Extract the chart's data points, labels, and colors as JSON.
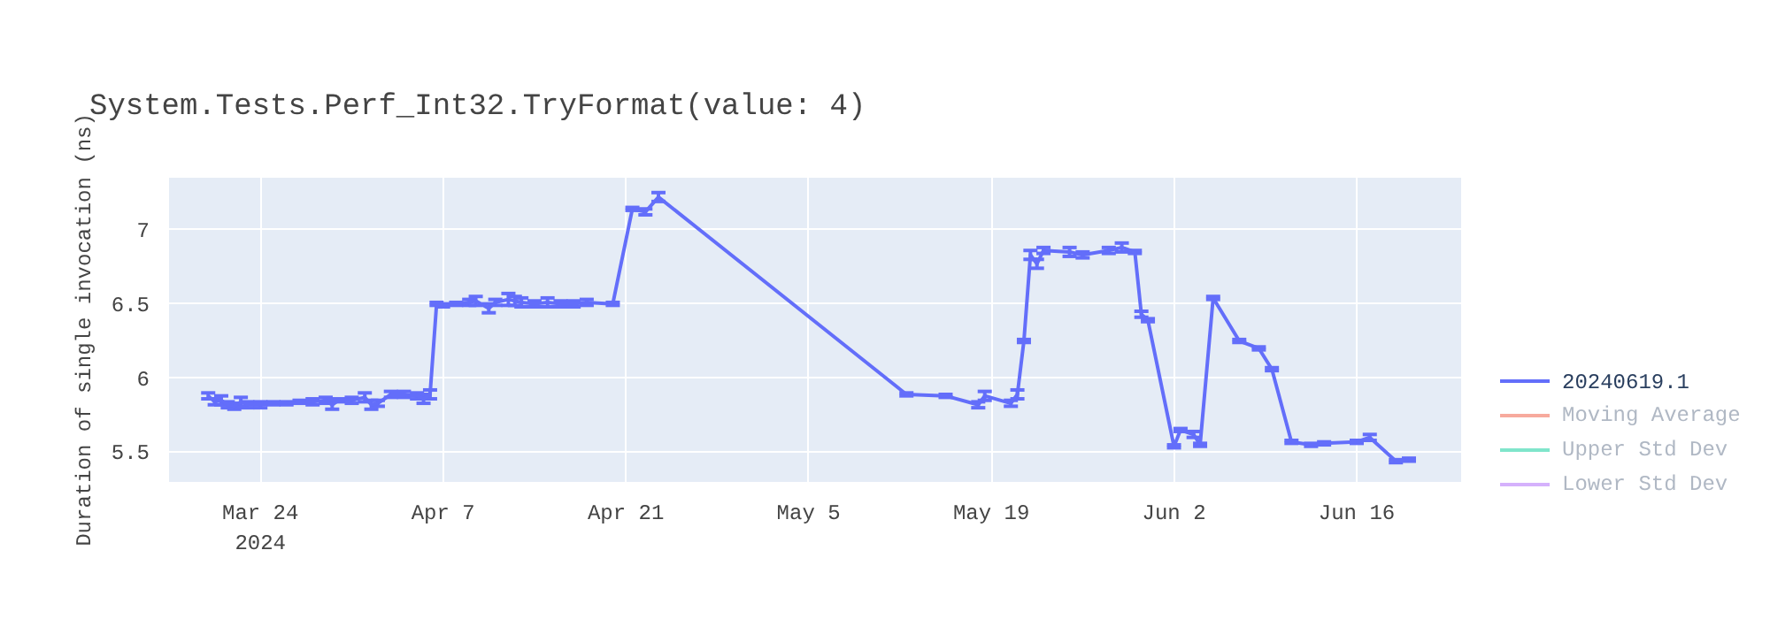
{
  "chart_data": {
    "type": "line",
    "title": "System.Tests.Perf_Int32.TryFormat(value: 4)",
    "ylabel": "Duration of single invocation (ns)",
    "x": [
      "2024-03-20",
      "2024-03-20T12:00",
      "2024-03-21",
      "2024-03-21T12:00",
      "2024-03-22",
      "2024-03-22T12:00",
      "2024-03-23",
      "2024-03-24",
      "2024-03-25",
      "2024-03-26",
      "2024-03-27",
      "2024-03-28",
      "2024-03-29",
      "2024-03-29T12:00",
      "2024-03-30",
      "2024-03-31",
      "2024-04-01",
      "2024-04-01T12:00",
      "2024-04-02",
      "2024-04-03",
      "2024-04-04",
      "2024-04-05",
      "2024-04-05T12:00",
      "2024-04-06",
      "2024-04-06T12:00",
      "2024-04-07",
      "2024-04-08",
      "2024-04-09",
      "2024-04-09T12:00",
      "2024-04-10T12:00",
      "2024-04-11",
      "2024-04-12",
      "2024-04-12T12:00",
      "2024-04-13",
      "2024-04-14",
      "2024-04-15",
      "2024-04-16",
      "2024-04-17",
      "2024-04-18",
      "2024-04-20",
      "2024-04-21T12:00",
      "2024-04-22T12:00",
      "2024-04-23T12:00",
      "2024-05-12T12:00",
      "2024-05-15T12:00",
      "2024-05-18",
      "2024-05-18T12:00",
      "2024-05-20T12:00",
      "2024-05-21",
      "2024-05-21T12:00",
      "2024-05-22",
      "2024-05-22T12:00",
      "2024-05-23",
      "2024-05-25",
      "2024-05-26",
      "2024-05-28",
      "2024-05-29",
      "2024-05-30",
      "2024-05-30T12:00",
      "2024-05-31",
      "2024-06-02",
      "2024-06-02T12:00",
      "2024-06-03T12:00",
      "2024-06-04",
      "2024-06-05",
      "2024-06-07",
      "2024-06-08T12:00",
      "2024-06-09T12:00",
      "2024-06-11",
      "2024-06-12T12:00",
      "2024-06-13T12:00",
      "2024-06-16",
      "2024-06-17",
      "2024-06-19",
      "2024-06-20"
    ],
    "series": [
      {
        "name": "20240619.1",
        "color": "#636efa",
        "values": [
          5.88,
          5.84,
          5.85,
          5.82,
          5.81,
          5.84,
          5.82,
          5.82,
          5.83,
          5.83,
          5.84,
          5.84,
          5.85,
          5.82,
          5.85,
          5.85,
          5.87,
          5.82,
          5.83,
          5.89,
          5.89,
          5.88,
          5.86,
          5.89,
          6.5,
          6.49,
          6.5,
          6.51,
          6.52,
          6.47,
          6.51,
          6.53,
          6.52,
          6.51,
          6.5,
          6.51,
          6.5,
          6.5,
          6.51,
          6.5,
          7.14,
          7.12,
          7.22,
          5.89,
          5.88,
          5.82,
          5.88,
          5.83,
          5.89,
          6.25,
          6.83,
          6.77,
          6.86,
          6.85,
          6.83,
          6.86,
          6.88,
          6.85,
          6.43,
          6.39,
          5.54,
          5.65,
          5.62,
          5.55,
          6.54,
          6.25,
          6.2,
          6.06,
          5.57,
          5.55,
          5.56,
          5.57,
          5.6,
          5.44,
          5.45
        ],
        "errors": [
          0.02,
          0.02,
          0.03,
          0.02,
          0.02,
          0.03,
          0.02,
          0.02,
          0.01,
          0.01,
          0.01,
          0.02,
          0.02,
          0.03,
          0.01,
          0.02,
          0.03,
          0.03,
          0.02,
          0.02,
          0.02,
          0.02,
          0.03,
          0.03,
          0.01,
          0.01,
          0.01,
          0.02,
          0.03,
          0.03,
          0.02,
          0.04,
          0.03,
          0.03,
          0.02,
          0.03,
          0.02,
          0.02,
          0.02,
          0.01,
          0.01,
          0.02,
          0.03,
          0.01,
          0.01,
          0.02,
          0.03,
          0.02,
          0.03,
          0.01,
          0.03,
          0.03,
          0.02,
          0.03,
          0.02,
          0.02,
          0.03,
          0.01,
          0.02,
          0.01,
          0.01,
          0.01,
          0.02,
          0.01,
          0.01,
          0.01,
          0.01,
          0.01,
          0.01,
          0.01,
          0.01,
          0.01,
          0.02,
          0.01,
          0.01
        ]
      },
      {
        "name": "Moving Average",
        "color": "#f7aa9d",
        "values": [
          null,
          null,
          null,
          null,
          null,
          null,
          null,
          null,
          null,
          null,
          null,
          null,
          null,
          null,
          null,
          null,
          null,
          null,
          null,
          null,
          null,
          null,
          null,
          null,
          null,
          null,
          null,
          null,
          null,
          null,
          null,
          null,
          null,
          null,
          null,
          null,
          null,
          null,
          null,
          null,
          null,
          null,
          null,
          null,
          null,
          null,
          null,
          null,
          null,
          null,
          null,
          null,
          null,
          null,
          null,
          null,
          null,
          null,
          null,
          null,
          null,
          null,
          null,
          null,
          null,
          null,
          null,
          null,
          null,
          null,
          null,
          null,
          null,
          null,
          null
        ]
      },
      {
        "name": "Upper Std Dev",
        "color": "#80e5cb",
        "values": [
          null,
          null,
          null,
          null,
          null,
          null,
          null,
          null,
          null,
          null,
          null,
          null,
          null,
          null,
          null,
          null,
          null,
          null,
          null,
          null,
          null,
          null,
          null,
          null,
          null,
          null,
          null,
          null,
          null,
          null,
          null,
          null,
          null,
          null,
          null,
          null,
          null,
          null,
          null,
          null,
          null,
          null,
          null,
          null,
          null,
          null,
          null,
          null,
          null,
          null,
          null,
          null,
          null,
          null,
          null,
          null,
          null,
          null,
          null,
          null,
          null,
          null,
          null,
          null,
          null,
          null,
          null,
          null,
          null,
          null,
          null,
          null,
          null,
          null,
          null
        ]
      },
      {
        "name": "Lower Std Dev",
        "color": "#d5b1fc",
        "values": [
          null,
          null,
          null,
          null,
          null,
          null,
          null,
          null,
          null,
          null,
          null,
          null,
          null,
          null,
          null,
          null,
          null,
          null,
          null,
          null,
          null,
          null,
          null,
          null,
          null,
          null,
          null,
          null,
          null,
          null,
          null,
          null,
          null,
          null,
          null,
          null,
          null,
          null,
          null,
          null,
          null,
          null,
          null,
          null,
          null,
          null,
          null,
          null,
          null,
          null,
          null,
          null,
          null,
          null,
          null,
          null,
          null,
          null,
          null,
          null,
          null,
          null,
          null,
          null,
          null,
          null,
          null,
          null,
          null,
          null,
          null,
          null,
          null,
          null,
          null
        ]
      }
    ],
    "xlim": [
      "2024-03-17",
      "2024-06-24"
    ],
    "xticks": [
      {
        "value": "2024-03-24",
        "label": "Mar 24\n2024"
      },
      {
        "value": "2024-04-07",
        "label": "Apr 7"
      },
      {
        "value": "2024-04-21",
        "label": "Apr 21"
      },
      {
        "value": "2024-05-05",
        "label": "May 5"
      },
      {
        "value": "2024-05-19",
        "label": "May 19"
      },
      {
        "value": "2024-06-02",
        "label": "Jun 2"
      },
      {
        "value": "2024-06-16",
        "label": "Jun 16"
      }
    ],
    "ylim": [
      5.3,
      7.35
    ],
    "yticks": [
      5.5,
      6,
      6.5,
      7
    ],
    "grid": true,
    "legend": "right",
    "marker": "none",
    "line_style": "solid"
  }
}
